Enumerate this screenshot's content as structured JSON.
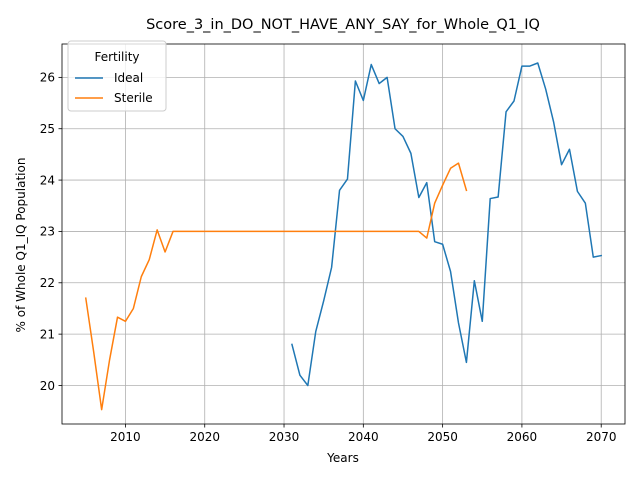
{
  "chart_data": {
    "type": "line",
    "title": "Score_3_in_DO_NOT_HAVE_ANY_SAY_for_Whole_Q1_IQ",
    "xlabel": "Years",
    "ylabel": "% of Whole Q1_IQ Population",
    "xlim": [
      2002,
      2073
    ],
    "ylim": [
      19.25,
      26.65
    ],
    "xticks": [
      2010,
      2020,
      2030,
      2040,
      2050,
      2060,
      2070
    ],
    "yticks": [
      20,
      21,
      22,
      23,
      24,
      25,
      26
    ],
    "grid": true,
    "legend": {
      "title": "Fertility",
      "placement": "top-left"
    },
    "series": [
      {
        "name": "Ideal",
        "color": "#1f77b4",
        "x": [
          2031,
          2032,
          2033,
          2034,
          2035,
          2036,
          2037,
          2038,
          2039,
          2040,
          2041,
          2042,
          2043,
          2044,
          2045,
          2046,
          2047,
          2048,
          2049,
          2050,
          2051,
          2052,
          2053,
          2054,
          2055,
          2056,
          2057,
          2058,
          2059,
          2060,
          2061,
          2062,
          2063,
          2064,
          2065,
          2066,
          2067,
          2068,
          2069,
          2070
        ],
        "y": [
          20.8,
          20.2,
          20.0,
          21.05,
          21.65,
          22.3,
          23.8,
          24.02,
          25.93,
          25.55,
          26.25,
          25.88,
          26.0,
          25.0,
          24.85,
          24.52,
          23.66,
          23.95,
          22.8,
          22.75,
          22.22,
          21.22,
          20.45,
          22.04,
          21.25,
          23.64,
          23.67,
          25.33,
          25.54,
          26.22,
          26.22,
          26.28,
          25.77,
          25.13,
          24.3,
          24.6,
          23.78,
          23.55,
          22.5,
          22.53
        ]
      },
      {
        "name": "Sterile",
        "color": "#ff7f0e",
        "x": [
          2005,
          2006,
          2007,
          2008,
          2009,
          2010,
          2011,
          2012,
          2013,
          2014,
          2015,
          2016,
          2017,
          2018,
          2019,
          2020,
          2021,
          2022,
          2023,
          2024,
          2025,
          2026,
          2027,
          2028,
          2029,
          2030,
          2031,
          2032,
          2033,
          2034,
          2035,
          2036,
          2037,
          2038,
          2039,
          2040,
          2041,
          2042,
          2043,
          2044,
          2045,
          2046,
          2047,
          2048,
          2049,
          2050,
          2051,
          2052,
          2053
        ],
        "y": [
          21.7,
          20.65,
          19.53,
          20.5,
          21.33,
          21.25,
          21.5,
          22.12,
          22.45,
          23.03,
          22.6,
          23.0,
          23.0,
          23.0,
          23.0,
          23.0,
          23.0,
          23.0,
          23.0,
          23.0,
          23.0,
          23.0,
          23.0,
          23.0,
          23.0,
          23.0,
          23.0,
          23.0,
          23.0,
          23.0,
          23.0,
          23.0,
          23.0,
          23.0,
          23.0,
          23.0,
          23.0,
          23.0,
          23.0,
          23.0,
          23.0,
          23.0,
          23.0,
          22.87,
          23.55,
          23.9,
          24.23,
          24.33,
          23.8
        ]
      }
    ]
  }
}
